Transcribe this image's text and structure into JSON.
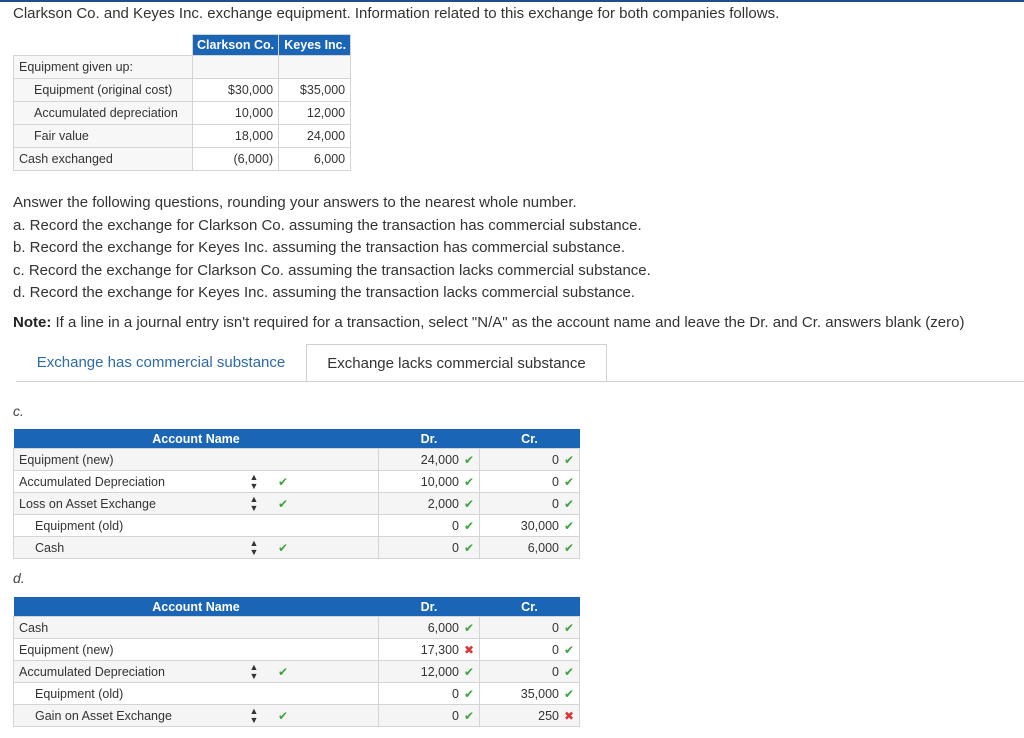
{
  "intro": "Clarkson Co. and Keyes Inc. exchange equipment. Information related to this exchange for both companies follows.",
  "info_table": {
    "headers": [
      "Clarkson Co.",
      "Keyes Inc."
    ],
    "section_label": "Equipment given up:",
    "rows": [
      {
        "label": "Equipment (original cost)",
        "clarkson": "$30,000",
        "keyes": "$35,000"
      },
      {
        "label": "Accumulated depreciation",
        "clarkson": "10,000",
        "keyes": "12,000"
      },
      {
        "label": "Fair value",
        "clarkson": "18,000",
        "keyes": "24,000"
      },
      {
        "label": "Cash exchanged",
        "clarkson": "(6,000)",
        "keyes": "6,000"
      }
    ]
  },
  "questions": {
    "lead": "Answer the following questions, rounding your answers to the nearest whole number.",
    "a": "a. Record the exchange for Clarkson Co. assuming the transaction has commercial substance.",
    "b": "b. Record the exchange for Keyes Inc. assuming the transaction has commercial substance.",
    "c": "c. Record the exchange for Clarkson Co. assuming the transaction lacks commercial substance.",
    "d": "d. Record the exchange for Keyes Inc. assuming the transaction lacks commercial substance.",
    "note_label": "Note:",
    "note_text": " If a line in a journal entry isn't required for a transaction, select \"N/A\" as the account name and leave the Dr. and Cr. answers blank (zero)"
  },
  "tabs": {
    "has": "Exchange has commercial substance",
    "lacks": "Exchange lacks commercial substance"
  },
  "journal_headers": {
    "account": "Account Name",
    "dr": "Dr.",
    "cr": "Cr."
  },
  "part_c": {
    "label": "c.",
    "rows": [
      {
        "account": "Equipment (new)",
        "dr": "24,000",
        "cr": "0"
      },
      {
        "account": "Accumulated Depreciation",
        "dr": "10,000",
        "cr": "0"
      },
      {
        "account": "Loss on Asset Exchange",
        "dr": "2,000",
        "cr": "0"
      },
      {
        "account": "Equipment (old)",
        "dr": "0",
        "cr": "30,000"
      },
      {
        "account": "Cash",
        "dr": "0",
        "cr": "6,000"
      }
    ]
  },
  "part_d": {
    "label": "d.",
    "rows": [
      {
        "account": "Cash",
        "dr": "6,000",
        "cr": "0"
      },
      {
        "account": "Equipment (new)",
        "dr": "17,300",
        "cr": "0"
      },
      {
        "account": "Accumulated Depreciation",
        "dr": "12,000",
        "cr": "0"
      },
      {
        "account": "Equipment (old)",
        "dr": "0",
        "cr": "35,000"
      },
      {
        "account": "Gain on Asset Exchange",
        "dr": "0",
        "cr": "250"
      }
    ]
  },
  "colors": {
    "header_blue": "#1a65b5",
    "check_green": "#3aa53a",
    "cross_red": "#d93838",
    "tab_link": "#2d6aa8"
  },
  "icons": {
    "correct": "check-icon",
    "incorrect": "cross-icon",
    "select": "select-arrows-icon"
  }
}
